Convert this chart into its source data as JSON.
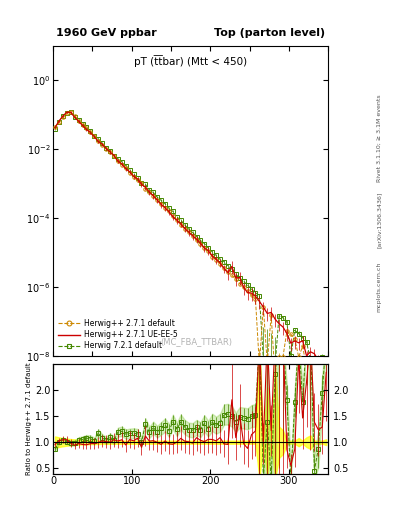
{
  "title_left": "1960 GeV ppbar",
  "title_right": "Top (parton level)",
  "plot_title": "pT (t͞tbar) (Mtt < 450)",
  "watermark": "(MC_FBA_TTBAR)",
  "right_label_1": "Rivet 3.1.10; ≥ 3.1M events",
  "right_label_2": "[arXiv:1306.3436]",
  "right_label_3": "mcplots.cern.ch",
  "ylabel_ratio": "Ratio to Herwig++ 2.7.1 default",
  "xlim": [
    0,
    350
  ],
  "ylim_main": [
    1e-08,
    10
  ],
  "ylim_ratio": [
    0.4,
    2.5
  ],
  "ratio_yticks": [
    0.5,
    1.0,
    1.5,
    2.0
  ],
  "legend_entries": [
    {
      "label": "Herwig++ 2.7.1 default",
      "color": "#cc8800",
      "style": "dashed",
      "marker": "o"
    },
    {
      "label": "Herwig++ 2.7.1 UE-EE-5",
      "color": "#cc0000",
      "style": "solid",
      "marker": null
    },
    {
      "label": "Herwig 7.2.1 default",
      "color": "#448800",
      "style": "dashed",
      "marker": "s"
    }
  ]
}
